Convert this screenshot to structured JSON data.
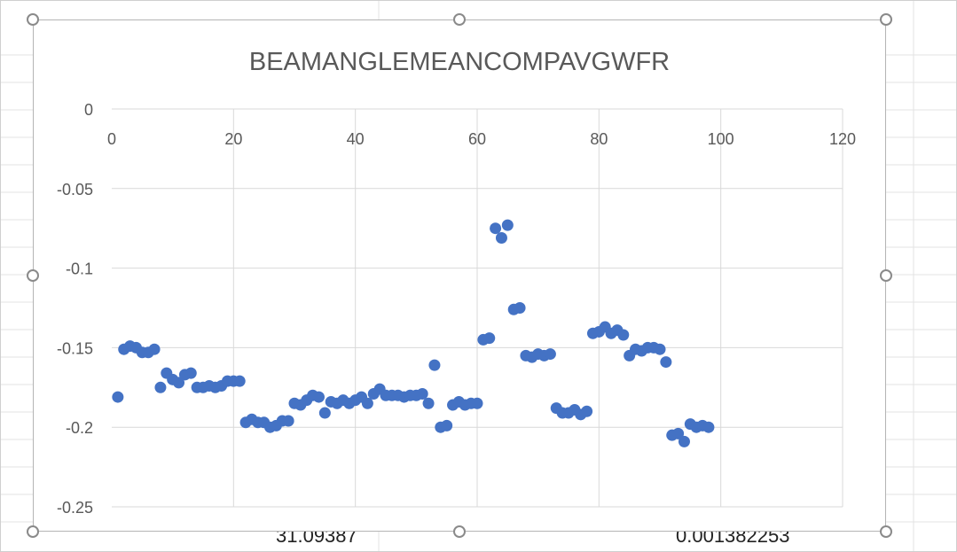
{
  "spreadsheet": {
    "cell_values": [
      "31.09387",
      "0.001382253"
    ]
  },
  "chart_data": {
    "type": "scatter",
    "title": "BEAMANGLEMEANCOMPAVGWFR",
    "xlabel": "",
    "ylabel": "",
    "xlim": [
      0,
      120
    ],
    "ylim": [
      -0.25,
      0
    ],
    "x_ticks": [
      0,
      20,
      40,
      60,
      80,
      100,
      120
    ],
    "y_ticks": [
      0,
      -0.05,
      -0.1,
      -0.15,
      -0.2,
      -0.25
    ],
    "x_axis_position": "top",
    "grid": true,
    "marker_color": "#4472C4",
    "series": [
      {
        "x": [
          1,
          2,
          3,
          4,
          5,
          6,
          7,
          8,
          9,
          10,
          11,
          12,
          13,
          14,
          15,
          16,
          17,
          18,
          19,
          20,
          21,
          22,
          23,
          24,
          25,
          26,
          27,
          28,
          29,
          30,
          31,
          32,
          33,
          34,
          35,
          36,
          37,
          38,
          39,
          40,
          41,
          42,
          43,
          44,
          45,
          46,
          47,
          48,
          49,
          50,
          51,
          52,
          53,
          54,
          55,
          56,
          57,
          58,
          59,
          60,
          61,
          62,
          63,
          64,
          65,
          66,
          67,
          68,
          69,
          70,
          71,
          72,
          73,
          74,
          75,
          76,
          77,
          78,
          79,
          80,
          81,
          82,
          83,
          84,
          85,
          86,
          87,
          88,
          89,
          90,
          91,
          92,
          93,
          94,
          95,
          96,
          97,
          98
        ],
        "y": [
          -0.181,
          -0.151,
          -0.149,
          -0.15,
          -0.153,
          -0.153,
          -0.151,
          -0.175,
          -0.166,
          -0.17,
          -0.172,
          -0.167,
          -0.166,
          -0.175,
          -0.175,
          -0.174,
          -0.175,
          -0.174,
          -0.171,
          -0.171,
          -0.171,
          -0.197,
          -0.195,
          -0.197,
          -0.197,
          -0.2,
          -0.199,
          -0.196,
          -0.196,
          -0.185,
          -0.186,
          -0.183,
          -0.18,
          -0.181,
          -0.191,
          -0.184,
          -0.185,
          -0.183,
          -0.185,
          -0.183,
          -0.181,
          -0.185,
          -0.179,
          -0.176,
          -0.18,
          -0.18,
          -0.18,
          -0.181,
          -0.18,
          -0.18,
          -0.179,
          -0.185,
          -0.161,
          -0.2,
          -0.199,
          -0.186,
          -0.184,
          -0.186,
          -0.185,
          -0.185,
          -0.145,
          -0.144,
          -0.075,
          -0.081,
          -0.073,
          -0.126,
          -0.125,
          -0.155,
          -0.156,
          -0.154,
          -0.155,
          -0.154,
          -0.188,
          -0.191,
          -0.191,
          -0.189,
          -0.192,
          -0.19,
          -0.141,
          -0.14,
          -0.137,
          -0.141,
          -0.139,
          -0.142,
          -0.155,
          -0.151,
          -0.152,
          -0.15,
          -0.15,
          -0.151,
          -0.159,
          -0.205,
          -0.204,
          -0.209,
          -0.198,
          -0.2,
          -0.199,
          -0.2
        ]
      }
    ]
  }
}
